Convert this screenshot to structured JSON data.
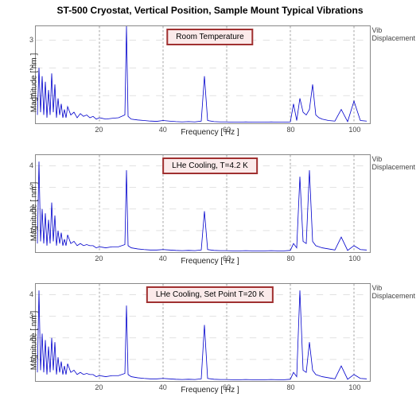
{
  "title": "ST-500 Cryostat, Vertical Position, Sample Mount Typical Vibrations",
  "title_fontsize": 12,
  "title_color": "#000000",
  "background_color": "#ffffff",
  "axis_border_color": "#888888",
  "grid_color": "#d0d0d0",
  "line_color": "#0000cc",
  "line_width": 0.8,
  "tick_fontsize": 9,
  "tick_color": "#444444",
  "label_fontsize": 10,
  "label_color": "#222222",
  "side_label_fontsize": 9,
  "side_label_color": "#444444",
  "legend_border_color": "#a03030",
  "legend_border_width": 2,
  "legend_bg_color": "#fbeaea",
  "legend_fontsize": 10,
  "panels": [
    {
      "legend": "Room Temperature",
      "ylabel": "Magnitude [ nm ]",
      "xlabel": "Frequency [ Hz ]",
      "side_label_line1": "Vib",
      "side_label_line2": "Displacement",
      "xlim": [
        0,
        105
      ],
      "ylim": [
        0,
        3.5
      ],
      "xticks": [
        20,
        40,
        60,
        80,
        100
      ],
      "yticks": [
        1,
        2,
        3
      ],
      "data": {
        "x": [
          0.5,
          1,
          1.5,
          2,
          2.5,
          3,
          3.5,
          4,
          4.5,
          5,
          5.5,
          6,
          6.5,
          7,
          7.5,
          8,
          8.5,
          9,
          9.5,
          10,
          11,
          12,
          13,
          14,
          15,
          16,
          17,
          18,
          19,
          20,
          22,
          24,
          26,
          28,
          28.5,
          29,
          30,
          32,
          34,
          36,
          38,
          40,
          42,
          44,
          46,
          48,
          50,
          52,
          53,
          54,
          56,
          58,
          60,
          62,
          64,
          66,
          68,
          70,
          72,
          74,
          76,
          78,
          80,
          81,
          82,
          83,
          84,
          85,
          86,
          87,
          88,
          89,
          90,
          92,
          94,
          96,
          98,
          100,
          102,
          104
        ],
        "y": [
          0.3,
          2.0,
          0.4,
          1.7,
          0.3,
          1.5,
          0.2,
          1.2,
          0.3,
          1.8,
          0.4,
          1.4,
          0.2,
          0.9,
          0.3,
          0.7,
          0.2,
          0.5,
          0.2,
          0.6,
          0.3,
          0.4,
          0.2,
          0.35,
          0.25,
          0.3,
          0.2,
          0.25,
          0.15,
          0.2,
          0.15,
          0.18,
          0.2,
          0.3,
          3.5,
          0.25,
          0.15,
          0.12,
          0.1,
          0.08,
          0.07,
          0.1,
          0.08,
          0.06,
          0.05,
          0.06,
          0.05,
          0.08,
          1.7,
          0.1,
          0.06,
          0.05,
          0.05,
          0.04,
          0.04,
          0.05,
          0.04,
          0.04,
          0.04,
          0.05,
          0.04,
          0.04,
          0.05,
          0.7,
          0.1,
          0.9,
          0.4,
          0.3,
          0.5,
          1.4,
          0.3,
          0.2,
          0.15,
          0.1,
          0.08,
          0.5,
          0.06,
          0.8,
          0.1,
          0.08
        ]
      }
    },
    {
      "legend": "LHe Cooling, T=4.2 K",
      "ylabel": "Magnitude [ nm ]",
      "xlabel": "Frequency [ Hz ]",
      "side_label_line1": "Vib",
      "side_label_line2": "Displacement",
      "xlim": [
        0,
        105
      ],
      "ylim": [
        0,
        4.5
      ],
      "xticks": [
        20,
        40,
        60,
        80,
        100
      ],
      "yticks": [
        1,
        2,
        3,
        4
      ],
      "data": {
        "x": [
          0.5,
          1,
          1.5,
          2,
          2.5,
          3,
          3.5,
          4,
          4.5,
          5,
          5.5,
          6,
          6.5,
          7,
          7.5,
          8,
          8.5,
          9,
          9.5,
          10,
          11,
          12,
          13,
          14,
          15,
          16,
          17,
          18,
          19,
          20,
          22,
          24,
          26,
          28,
          28.5,
          29,
          30,
          32,
          34,
          36,
          38,
          40,
          42,
          44,
          46,
          48,
          50,
          52,
          53,
          54,
          56,
          58,
          60,
          62,
          64,
          66,
          68,
          70,
          72,
          74,
          76,
          78,
          80,
          81,
          82,
          83,
          84,
          85,
          86,
          87,
          88,
          89,
          90,
          92,
          94,
          96,
          98,
          100,
          102,
          104
        ],
        "y": [
          0.4,
          4.2,
          0.5,
          2.0,
          0.4,
          1.8,
          0.3,
          1.5,
          0.4,
          2.3,
          0.5,
          1.7,
          0.3,
          1.0,
          0.4,
          0.9,
          0.3,
          0.6,
          0.3,
          0.8,
          0.4,
          0.5,
          0.3,
          0.4,
          0.3,
          0.35,
          0.3,
          0.3,
          0.2,
          0.25,
          0.2,
          0.25,
          0.25,
          0.35,
          3.8,
          0.3,
          0.2,
          0.15,
          0.12,
          0.1,
          0.1,
          0.12,
          0.1,
          0.08,
          0.07,
          0.08,
          0.07,
          0.1,
          1.9,
          0.12,
          0.08,
          0.07,
          0.07,
          0.06,
          0.06,
          0.07,
          0.06,
          0.06,
          0.06,
          0.07,
          0.06,
          0.06,
          0.08,
          0.4,
          0.2,
          3.5,
          0.5,
          0.4,
          3.8,
          0.5,
          0.3,
          0.25,
          0.2,
          0.15,
          0.1,
          0.7,
          0.08,
          0.3,
          0.12,
          0.1
        ]
      }
    },
    {
      "legend": "LHe Cooling, Set Point T=20 K",
      "ylabel": "Magnitude [ nm ]",
      "xlabel": "Frequency [ Hz ]",
      "side_label_line1": "Vib",
      "side_label_line2": "Displacement",
      "xlim": [
        0,
        105
      ],
      "ylim": [
        0,
        4.5
      ],
      "xticks": [
        20,
        40,
        60,
        80,
        100
      ],
      "yticks": [
        1,
        2,
        3,
        4
      ],
      "data": {
        "x": [
          0.5,
          1,
          1.5,
          2,
          2.5,
          3,
          3.5,
          4,
          4.5,
          5,
          5.5,
          6,
          6.5,
          7,
          7.5,
          8,
          8.5,
          9,
          9.5,
          10,
          11,
          12,
          13,
          14,
          15,
          16,
          17,
          18,
          19,
          20,
          22,
          24,
          26,
          28,
          28.5,
          29,
          30,
          32,
          34,
          36,
          38,
          40,
          42,
          44,
          46,
          48,
          50,
          52,
          53,
          54,
          56,
          58,
          60,
          62,
          64,
          66,
          68,
          70,
          72,
          74,
          76,
          78,
          80,
          81,
          82,
          83,
          84,
          85,
          86,
          87,
          88,
          89,
          90,
          92,
          94,
          96,
          98,
          100,
          102,
          104
        ],
        "y": [
          0.4,
          4.2,
          0.5,
          2.2,
          0.4,
          1.9,
          0.3,
          1.6,
          0.4,
          2.0,
          0.5,
          1.8,
          0.3,
          1.1,
          0.4,
          0.9,
          0.3,
          0.7,
          0.3,
          0.8,
          0.4,
          0.5,
          0.3,
          0.4,
          0.3,
          0.35,
          0.3,
          0.3,
          0.2,
          0.25,
          0.2,
          0.25,
          0.25,
          0.35,
          3.5,
          0.3,
          0.2,
          0.15,
          0.12,
          0.1,
          0.1,
          0.12,
          0.1,
          0.08,
          0.07,
          0.08,
          0.07,
          0.1,
          2.6,
          0.12,
          0.08,
          0.07,
          0.07,
          0.06,
          0.06,
          0.07,
          0.06,
          0.06,
          0.06,
          0.07,
          0.06,
          0.06,
          0.08,
          0.4,
          0.2,
          4.2,
          0.5,
          0.4,
          1.8,
          0.5,
          0.3,
          0.25,
          0.2,
          0.15,
          0.1,
          0.7,
          0.08,
          0.3,
          0.12,
          0.1
        ]
      }
    }
  ]
}
